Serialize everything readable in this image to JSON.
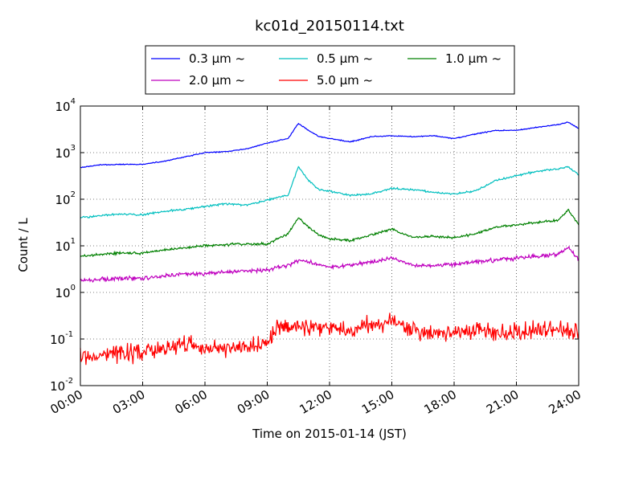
{
  "chart_data": {
    "type": "line",
    "title": "kc01d_20150114.txt",
    "xlabel": "Time on 2015-01-14 (JST)",
    "ylabel": "Count / L",
    "yscale": "log",
    "xlim": [
      "2015-01-14 00:00",
      "2015-01-15 00:00"
    ],
    "ylim": [
      0.01,
      10000
    ],
    "x_tick_labels": [
      "00:00",
      "03:00",
      "06:00",
      "09:00",
      "12:00",
      "15:00",
      "18:00",
      "21:00",
      "24:00"
    ],
    "y_tick_labels": [
      {
        "base": "10",
        "exp": "-2"
      },
      {
        "base": "10",
        "exp": "-1"
      },
      {
        "base": "10",
        "exp": "0"
      },
      {
        "base": "10",
        "exp": "1"
      },
      {
        "base": "10",
        "exp": "2"
      },
      {
        "base": "10",
        "exp": "3"
      },
      {
        "base": "10",
        "exp": "4"
      }
    ],
    "grid": true,
    "legend_position": "top-center",
    "x": [
      "00:00",
      "01:00",
      "02:00",
      "03:00",
      "04:00",
      "05:00",
      "06:00",
      "07:00",
      "08:00",
      "09:00",
      "09:30",
      "10:00",
      "10:30",
      "11:00",
      "11:30",
      "12:00",
      "13:00",
      "14:00",
      "15:00",
      "16:00",
      "17:00",
      "18:00",
      "19:00",
      "20:00",
      "21:00",
      "22:00",
      "23:00",
      "23:30",
      "24:00"
    ],
    "series": [
      {
        "name": "0.3 μm ~",
        "color": "#0000ff",
        "values": [
          480,
          550,
          560,
          560,
          650,
          800,
          1000,
          1050,
          1200,
          1600,
          1800,
          2000,
          4200,
          3000,
          2200,
          2000,
          1700,
          2200,
          2300,
          2200,
          2300,
          2000,
          2500,
          3000,
          3000,
          3500,
          4000,
          4500,
          3300
        ]
      },
      {
        "name": "0.5 μm ~",
        "color": "#00bfbf",
        "values": [
          40,
          45,
          48,
          46,
          55,
          60,
          70,
          80,
          75,
          95,
          110,
          120,
          500,
          250,
          160,
          150,
          120,
          130,
          170,
          160,
          140,
          130,
          150,
          250,
          320,
          400,
          450,
          500,
          330
        ]
      },
      {
        "name": "1.0 μm ~",
        "color": "#008000",
        "values": [
          6,
          6.5,
          7,
          7,
          8,
          9,
          10,
          10.5,
          11,
          11,
          14,
          18,
          40,
          25,
          17,
          14,
          13,
          17,
          23,
          15,
          16,
          15,
          18,
          25,
          28,
          32,
          35,
          60,
          28
        ]
      },
      {
        "name": "2.0 μm ~",
        "color": "#bf00bf",
        "values": [
          1.8,
          1.9,
          2,
          2,
          2.2,
          2.5,
          2.5,
          2.7,
          2.9,
          3,
          3.5,
          3.8,
          5,
          4.5,
          3.8,
          3.5,
          3.8,
          4.5,
          5.5,
          3.8,
          3.8,
          4,
          4.5,
          5,
          5.5,
          6,
          6.5,
          9,
          5
        ]
      },
      {
        "name": "5.0 μm ~",
        "color": "#ff0000",
        "values": [
          0.04,
          0.045,
          0.05,
          0.05,
          0.07,
          0.08,
          0.06,
          0.06,
          0.07,
          0.08,
          0.2,
          0.18,
          0.2,
          0.16,
          0.17,
          0.18,
          0.15,
          0.2,
          0.25,
          0.15,
          0.13,
          0.15,
          0.15,
          0.14,
          0.14,
          0.15,
          0.16,
          0.16,
          0.14
        ]
      }
    ]
  }
}
